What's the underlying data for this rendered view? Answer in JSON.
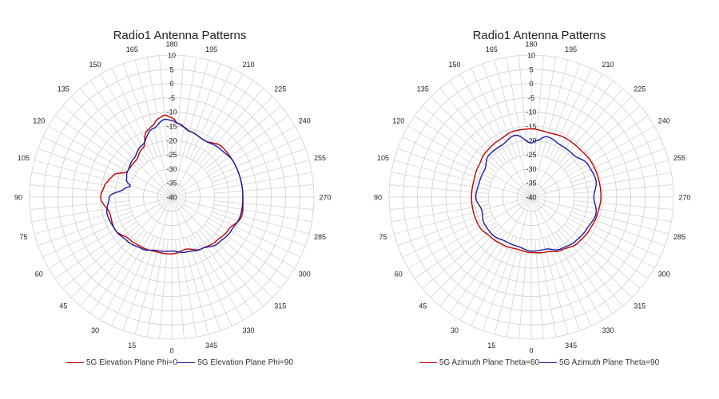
{
  "colors": {
    "red": "#c00000",
    "blue": "#1a1aa6",
    "grid": "#cfcfcf"
  },
  "chart_data": [
    {
      "type": "polar-line",
      "title": "Radio1 Antenna Patterns",
      "radial_ticks": [
        10,
        5,
        0,
        -5,
        -10,
        -15,
        -20,
        -25,
        -30,
        -35,
        -40
      ],
      "rlim": [
        -40,
        10
      ],
      "angle_ticks": [
        "0",
        "15",
        "30",
        "45",
        "60",
        "75",
        "90",
        "105",
        "120",
        "135",
        "150",
        "165",
        "180",
        "195",
        "210",
        "225",
        "240",
        "255",
        "270",
        "285",
        "300",
        "315",
        "330",
        "345"
      ],
      "angle_zero": "bottom",
      "angle_direction": "counter-clockwise",
      "grid": true,
      "legend_position": "bottom",
      "series": [
        {
          "name": "5G Elevation Plane Phi=0",
          "color": "#c00000",
          "angles": [
            0,
            15,
            30,
            45,
            60,
            75,
            90,
            100,
            105,
            110,
            120,
            135,
            150,
            160,
            165,
            170,
            175,
            180,
            185,
            190,
            195,
            210,
            225,
            240,
            255,
            270,
            285,
            300,
            315,
            330,
            345
          ],
          "values": [
            -20,
            -20,
            -19.5,
            -19,
            -17,
            -17.5,
            -15,
            -16,
            -17,
            -18,
            -22,
            -22,
            -20,
            -15,
            -14,
            -12,
            -11,
            -12,
            -14,
            -15,
            -16,
            -17,
            -15,
            -15,
            -15,
            -15,
            -14.5,
            -17,
            -18,
            -19,
            -21
          ]
        },
        {
          "name": "5G Elevation Plane Phi=90",
          "color": "#1a1aa6",
          "angles": [
            0,
            15,
            30,
            45,
            60,
            75,
            90,
            100,
            105,
            110,
            120,
            135,
            150,
            165,
            175,
            180,
            185,
            195,
            210,
            225,
            240,
            255,
            270,
            285,
            300,
            315,
            330,
            345
          ],
          "values": [
            -21,
            -20.5,
            -19,
            -18,
            -17,
            -16.5,
            -18,
            -23,
            -25,
            -23,
            -22,
            -21,
            -19,
            -15,
            -12.5,
            -13,
            -14,
            -16,
            -17,
            -16,
            -15,
            -15,
            -15,
            -15,
            -16,
            -17,
            -19,
            -20
          ]
        }
      ]
    },
    {
      "type": "polar-line",
      "title": "Radio1 Antenna Patterns",
      "radial_ticks": [
        10,
        5,
        0,
        -5,
        -10,
        -15,
        -20,
        -25,
        -30,
        -35,
        -40
      ],
      "rlim": [
        -40,
        10
      ],
      "angle_ticks": [
        "0",
        "15",
        "30",
        "45",
        "60",
        "75",
        "90",
        "105",
        "120",
        "135",
        "150",
        "165",
        "180",
        "195",
        "210",
        "225",
        "240",
        "255",
        "270",
        "285",
        "300",
        "315",
        "330",
        "345"
      ],
      "angle_zero": "bottom",
      "angle_direction": "counter-clockwise",
      "grid": true,
      "legend_position": "bottom",
      "series": [
        {
          "name": "5G Azimuth Plane Theta=60",
          "color": "#c00000",
          "angles": [
            0,
            15,
            30,
            45,
            60,
            75,
            90,
            105,
            120,
            135,
            150,
            165,
            180,
            195,
            210,
            225,
            240,
            255,
            270,
            285,
            300,
            315,
            330,
            345
          ],
          "values": [
            -20.5,
            -21,
            -20.5,
            -20,
            -19,
            -19,
            -19,
            -19,
            -18.5,
            -17.5,
            -17,
            -16,
            -16,
            -16.5,
            -16,
            -16,
            -15.5,
            -15.5,
            -15.5,
            -16,
            -16.5,
            -17,
            -18.5,
            -20
          ]
        },
        {
          "name": "5G Azimuth Plane Theta=90",
          "color": "#1a1aa6",
          "angles": [
            0,
            15,
            30,
            45,
            60,
            75,
            90,
            105,
            120,
            135,
            150,
            165,
            180,
            185,
            195,
            210,
            225,
            240,
            255,
            270,
            285,
            300,
            315,
            330,
            345
          ],
          "values": [
            -21,
            -22,
            -22,
            -21,
            -21,
            -22,
            -20.5,
            -21,
            -21,
            -19,
            -19,
            -17.5,
            -21,
            -20,
            -18,
            -19,
            -19,
            -17,
            -16.5,
            -18,
            -16.5,
            -17.5,
            -18,
            -19,
            -21
          ]
        }
      ]
    }
  ]
}
